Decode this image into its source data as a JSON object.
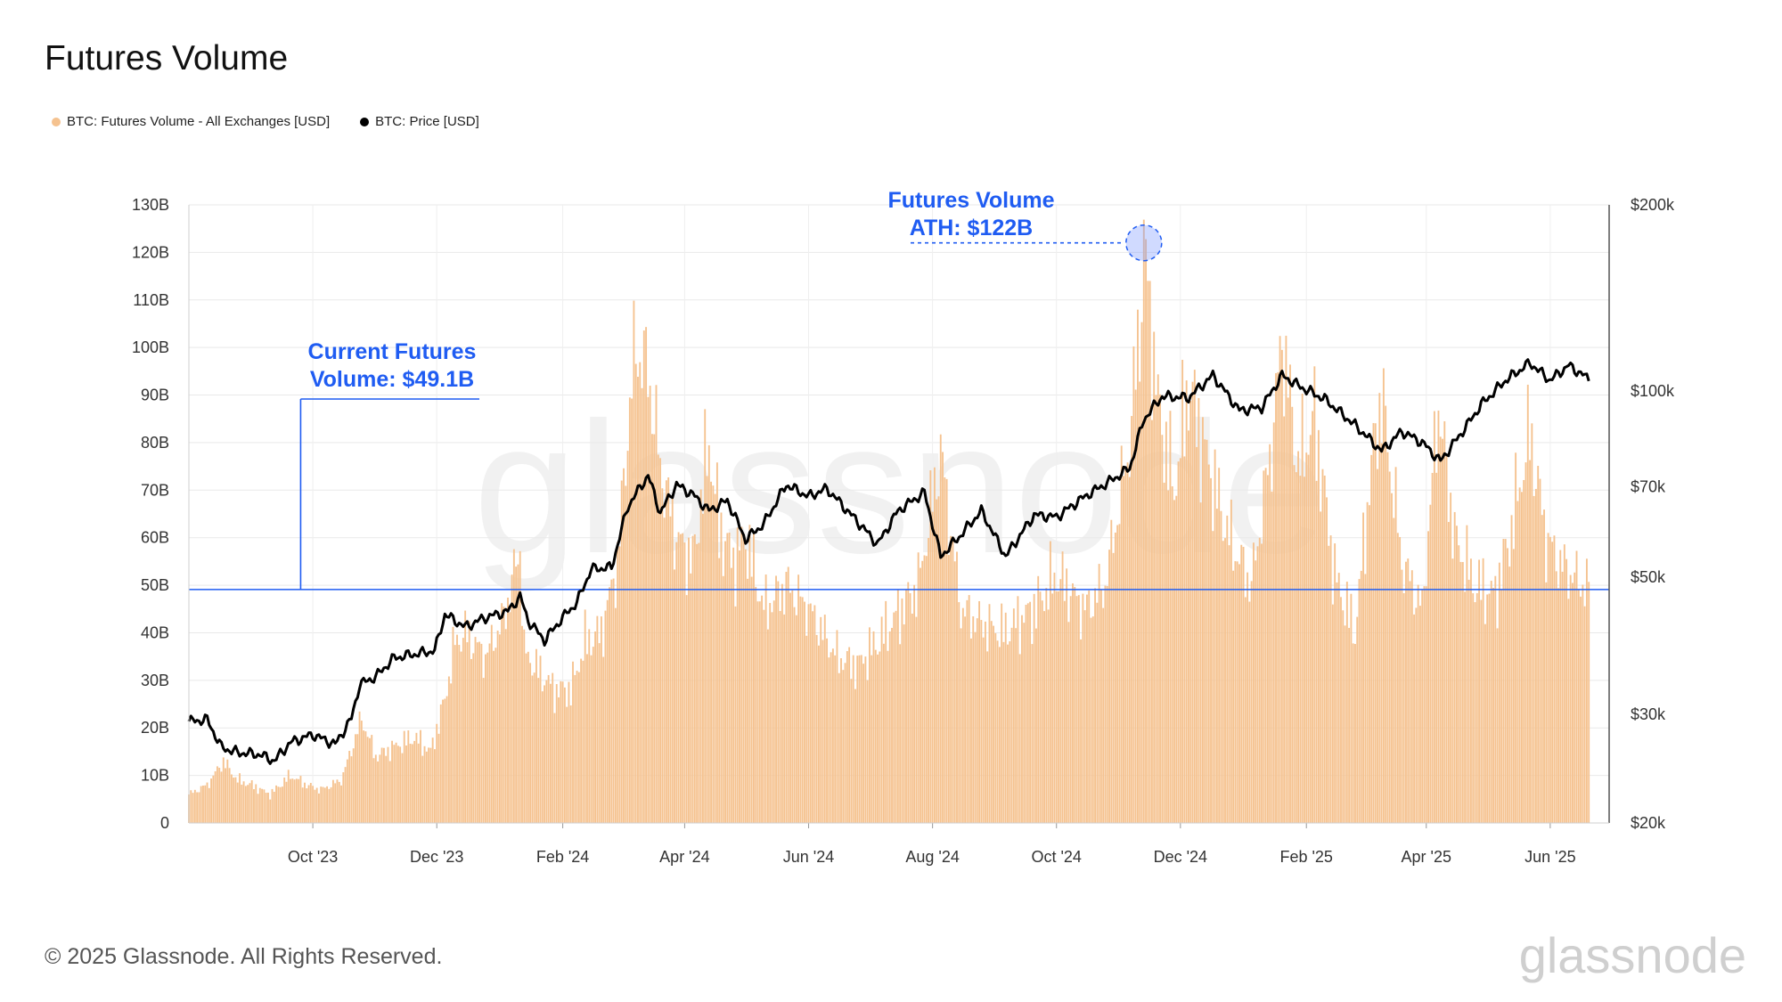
{
  "page": {
    "title": "Futures Volume",
    "copyright": "© 2025 Glassnode. All Rights Reserved.",
    "brand": "glassnode"
  },
  "legend": [
    {
      "label": "BTC: Futures Volume - All Exchanges [USD]",
      "color": "#f5c28f"
    },
    {
      "label": "BTC: Price [USD]",
      "color": "#000000"
    }
  ],
  "chart_data": {
    "type": "bar",
    "title": "Futures Volume",
    "watermark": "glassnode",
    "x_axis": {
      "type": "date",
      "range": [
        "2023-08-01",
        "2025-06-30"
      ],
      "ticks": [
        {
          "label": "Oct '23",
          "date": "2023-10-01"
        },
        {
          "label": "Dec '23",
          "date": "2023-12-01"
        },
        {
          "label": "Feb '24",
          "date": "2024-02-01"
        },
        {
          "label": "Apr '24",
          "date": "2024-04-01"
        },
        {
          "label": "Jun '24",
          "date": "2024-06-01"
        },
        {
          "label": "Aug '24",
          "date": "2024-08-01"
        },
        {
          "label": "Oct '24",
          "date": "2024-10-01"
        },
        {
          "label": "Dec '24",
          "date": "2024-12-01"
        },
        {
          "label": "Feb '25",
          "date": "2025-02-01"
        },
        {
          "label": "Apr '25",
          "date": "2025-04-01"
        },
        {
          "label": "Jun '25",
          "date": "2025-06-01"
        }
      ]
    },
    "y_left": {
      "unit": "USD (billions)",
      "range": [
        0,
        130
      ],
      "ticks": [
        {
          "value": 0,
          "label": "0"
        },
        {
          "value": 10,
          "label": "10B"
        },
        {
          "value": 20,
          "label": "20B"
        },
        {
          "value": 30,
          "label": "30B"
        },
        {
          "value": 40,
          "label": "40B"
        },
        {
          "value": 50,
          "label": "50B"
        },
        {
          "value": 60,
          "label": "60B"
        },
        {
          "value": 70,
          "label": "70B"
        },
        {
          "value": 80,
          "label": "80B"
        },
        {
          "value": 90,
          "label": "90B"
        },
        {
          "value": 100,
          "label": "100B"
        },
        {
          "value": 110,
          "label": "110B"
        },
        {
          "value": 120,
          "label": "120B"
        },
        {
          "value": 130,
          "label": "130B"
        }
      ]
    },
    "y_right": {
      "unit": "USD",
      "scale": "log",
      "range": [
        20000,
        200000
      ],
      "ticks": [
        {
          "value": 20000,
          "label": "$20k"
        },
        {
          "value": 30000,
          "label": "$30k"
        },
        {
          "value": 50000,
          "label": "$50k"
        },
        {
          "value": 70000,
          "label": "$70k"
        },
        {
          "value": 100000,
          "label": "$100k"
        },
        {
          "value": 200000,
          "label": "$200k"
        }
      ]
    },
    "series": [
      {
        "name": "BTC: Futures Volume - All Exchanges [USD]",
        "kind": "bar",
        "axis": "left",
        "color": "#f5c28f",
        "points": [
          [
            "2023-08-01",
            6
          ],
          [
            "2023-08-10",
            8
          ],
          [
            "2023-08-18",
            13
          ],
          [
            "2023-08-25",
            9
          ],
          [
            "2023-09-01",
            8
          ],
          [
            "2023-09-10",
            6
          ],
          [
            "2023-09-20",
            10
          ],
          [
            "2023-09-28",
            8
          ],
          [
            "2023-10-05",
            7
          ],
          [
            "2023-10-15",
            9
          ],
          [
            "2023-10-22",
            18
          ],
          [
            "2023-10-25",
            22
          ],
          [
            "2023-11-01",
            14
          ],
          [
            "2023-11-10",
            16
          ],
          [
            "2023-11-20",
            18
          ],
          [
            "2023-11-28",
            15
          ],
          [
            "2023-12-05",
            26
          ],
          [
            "2023-12-10",
            38
          ],
          [
            "2023-12-15",
            40
          ],
          [
            "2023-12-25",
            35
          ],
          [
            "2024-01-03",
            43
          ],
          [
            "2024-01-11",
            58
          ],
          [
            "2024-01-13",
            36
          ],
          [
            "2024-01-20",
            32
          ],
          [
            "2024-01-28",
            28
          ],
          [
            "2024-02-05",
            28
          ],
          [
            "2024-02-12",
            38
          ],
          [
            "2024-02-20",
            40
          ],
          [
            "2024-02-28",
            55
          ],
          [
            "2024-03-05",
            88
          ],
          [
            "2024-03-08",
            100
          ],
          [
            "2024-03-14",
            95
          ],
          [
            "2024-03-20",
            75
          ],
          [
            "2024-03-28",
            60
          ],
          [
            "2024-04-05",
            55
          ],
          [
            "2024-04-13",
            80
          ],
          [
            "2024-04-18",
            62
          ],
          [
            "2024-04-25",
            55
          ],
          [
            "2024-05-01",
            60
          ],
          [
            "2024-05-10",
            45
          ],
          [
            "2024-05-21",
            50
          ],
          [
            "2024-06-01",
            45
          ],
          [
            "2024-06-15",
            35
          ],
          [
            "2024-06-25",
            33
          ],
          [
            "2024-07-05",
            38
          ],
          [
            "2024-07-15",
            44
          ],
          [
            "2024-07-25",
            50
          ],
          [
            "2024-08-05",
            78
          ],
          [
            "2024-08-15",
            45
          ],
          [
            "2024-08-25",
            42
          ],
          [
            "2024-09-05",
            40
          ],
          [
            "2024-09-20",
            45
          ],
          [
            "2024-10-01",
            52
          ],
          [
            "2024-10-15",
            45
          ],
          [
            "2024-10-25",
            50
          ],
          [
            "2024-11-06",
            80
          ],
          [
            "2024-11-12",
            110
          ],
          [
            "2024-11-13",
            122
          ],
          [
            "2024-11-20",
            88
          ],
          [
            "2024-11-28",
            70
          ],
          [
            "2024-12-05",
            92
          ],
          [
            "2024-12-15",
            75
          ],
          [
            "2024-12-25",
            60
          ],
          [
            "2025-01-05",
            50
          ],
          [
            "2025-01-15",
            80
          ],
          [
            "2025-01-20",
            102
          ],
          [
            "2025-01-28",
            75
          ],
          [
            "2025-02-05",
            85
          ],
          [
            "2025-02-15",
            52
          ],
          [
            "2025-02-25",
            40
          ],
          [
            "2025-03-05",
            75
          ],
          [
            "2025-03-10",
            90
          ],
          [
            "2025-03-20",
            55
          ],
          [
            "2025-03-30",
            45
          ],
          [
            "2025-04-07",
            88
          ],
          [
            "2025-04-15",
            60
          ],
          [
            "2025-04-25",
            50
          ],
          [
            "2025-05-05",
            48
          ],
          [
            "2025-05-12",
            60
          ],
          [
            "2025-05-22",
            82
          ],
          [
            "2025-05-30",
            60
          ],
          [
            "2025-06-05",
            55
          ],
          [
            "2025-06-12",
            52
          ],
          [
            "2025-06-20",
            49.1
          ]
        ]
      },
      {
        "name": "BTC: Price [USD]",
        "kind": "line",
        "axis": "right",
        "color": "#000000",
        "points": [
          [
            "2023-08-01",
            29200
          ],
          [
            "2023-08-10",
            29400
          ],
          [
            "2023-08-17",
            26500
          ],
          [
            "2023-08-25",
            26000
          ],
          [
            "2023-09-05",
            25800
          ],
          [
            "2023-09-12",
            25200
          ],
          [
            "2023-09-20",
            27000
          ],
          [
            "2023-10-01",
            27800
          ],
          [
            "2023-10-12",
            26800
          ],
          [
            "2023-10-20",
            29500
          ],
          [
            "2023-10-24",
            33500
          ],
          [
            "2023-11-01",
            34500
          ],
          [
            "2023-11-10",
            37000
          ],
          [
            "2023-11-20",
            37500
          ],
          [
            "2023-11-30",
            38000
          ],
          [
            "2023-12-05",
            43500
          ],
          [
            "2023-12-15",
            41500
          ],
          [
            "2023-12-25",
            43000
          ],
          [
            "2024-01-05",
            44000
          ],
          [
            "2024-01-11",
            46500
          ],
          [
            "2024-01-15",
            42500
          ],
          [
            "2024-01-23",
            39500
          ],
          [
            "2024-02-01",
            43000
          ],
          [
            "2024-02-08",
            45500
          ],
          [
            "2024-02-15",
            51500
          ],
          [
            "2024-02-25",
            51800
          ],
          [
            "2024-03-04",
            65000
          ],
          [
            "2024-03-14",
            73000
          ],
          [
            "2024-03-20",
            63500
          ],
          [
            "2024-03-28",
            70500
          ],
          [
            "2024-04-05",
            68000
          ],
          [
            "2024-04-13",
            64000
          ],
          [
            "2024-04-22",
            66500
          ],
          [
            "2024-05-01",
            57500
          ],
          [
            "2024-05-10",
            61000
          ],
          [
            "2024-05-21",
            70500
          ],
          [
            "2024-06-01",
            67500
          ],
          [
            "2024-06-10",
            69500
          ],
          [
            "2024-06-25",
            61500
          ],
          [
            "2024-07-05",
            56500
          ],
          [
            "2024-07-15",
            64000
          ],
          [
            "2024-07-28",
            68500
          ],
          [
            "2024-08-05",
            54000
          ],
          [
            "2024-08-15",
            58500
          ],
          [
            "2024-08-25",
            64000
          ],
          [
            "2024-09-06",
            54000
          ],
          [
            "2024-09-20",
            63000
          ],
          [
            "2024-10-01",
            62500
          ],
          [
            "2024-10-15",
            67500
          ],
          [
            "2024-10-29",
            72000
          ],
          [
            "2024-11-06",
            75000
          ],
          [
            "2024-11-13",
            90000
          ],
          [
            "2024-11-22",
            98000
          ],
          [
            "2024-12-05",
            97500
          ],
          [
            "2024-12-17",
            106000
          ],
          [
            "2024-12-30",
            93000
          ],
          [
            "2025-01-10",
            94000
          ],
          [
            "2025-01-20",
            106000
          ],
          [
            "2025-01-28",
            102000
          ],
          [
            "2025-02-10",
            97000
          ],
          [
            "2025-02-25",
            88000
          ],
          [
            "2025-03-10",
            80000
          ],
          [
            "2025-03-20",
            86000
          ],
          [
            "2025-03-30",
            82500
          ],
          [
            "2025-04-08",
            77000
          ],
          [
            "2025-04-20",
            87000
          ],
          [
            "2025-04-28",
            95000
          ],
          [
            "2025-05-10",
            104000
          ],
          [
            "2025-05-22",
            111000
          ],
          [
            "2025-06-01",
            104000
          ],
          [
            "2025-06-10",
            110000
          ],
          [
            "2025-06-20",
            104500
          ]
        ]
      }
    ],
    "reference_lines": [
      {
        "axis": "left",
        "value": 49.1,
        "color": "#1f5cf2"
      }
    ],
    "annotations": [
      {
        "id": "current",
        "lines": [
          "Current Futures",
          "Volume: $49.1B"
        ],
        "date": "2023-09-25",
        "value": 49.1
      },
      {
        "id": "ath",
        "lines": [
          "Futures Volume",
          "ATH: $122B"
        ],
        "date": "2024-11-13",
        "value": 122
      }
    ]
  }
}
